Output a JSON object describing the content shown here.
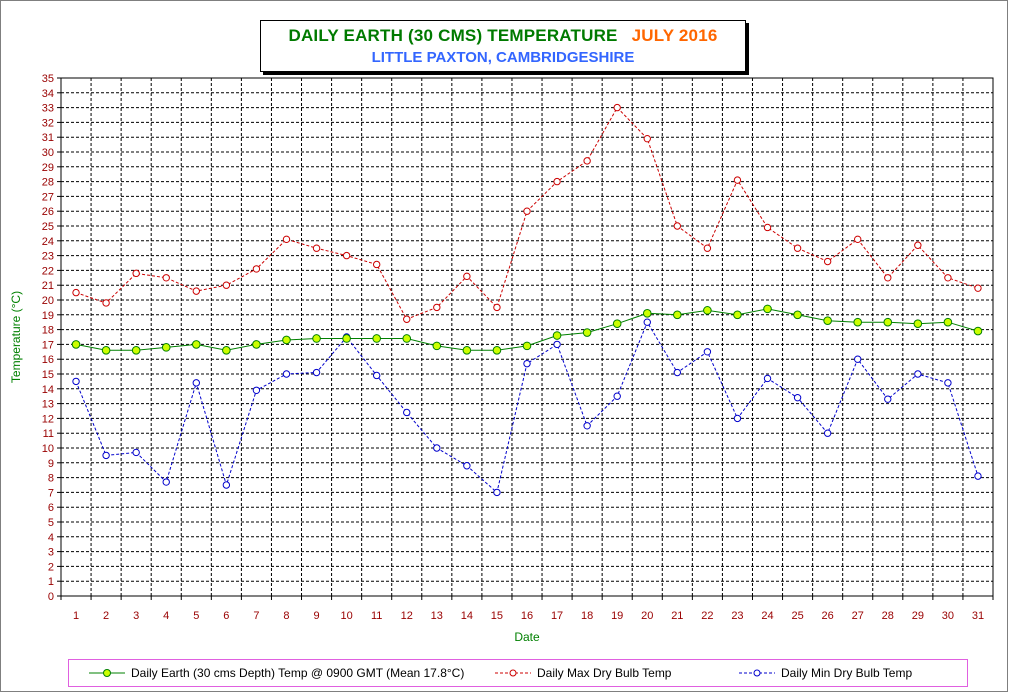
{
  "title": {
    "main": "DAILY EARTH (30 CMS) TEMPERATURE",
    "period": "JULY 2016",
    "subtitle": "LITTLE PAXTON, CAMBRIDGESHIRE"
  },
  "colors": {
    "earth": "#008000",
    "earth_marker": "#ccff00",
    "max": "#cc0000",
    "min": "#0000cc",
    "axis_text": "#990000",
    "axis_title": "#008000"
  },
  "chart_data": {
    "type": "line",
    "xlabel": "Date",
    "ylabel": "Temperature (°C)",
    "ylim": [
      0,
      35
    ],
    "yticks": [
      0,
      1,
      2,
      3,
      4,
      5,
      6,
      7,
      8,
      9,
      10,
      11,
      12,
      13,
      14,
      15,
      16,
      17,
      18,
      19,
      20,
      21,
      22,
      23,
      24,
      25,
      26,
      27,
      28,
      29,
      30,
      31,
      32,
      33,
      34,
      35
    ],
    "x": [
      1,
      2,
      3,
      4,
      5,
      6,
      7,
      8,
      9,
      10,
      11,
      12,
      13,
      14,
      15,
      16,
      17,
      18,
      19,
      20,
      21,
      22,
      23,
      24,
      25,
      26,
      27,
      28,
      29,
      30,
      31
    ],
    "grid": true,
    "legend_position": "bottom",
    "series": [
      {
        "name": "Daily Earth (30 cms Depth) Temp @ 0900 GMT (Mean 17.8°C)",
        "values": [
          17.0,
          16.6,
          16.6,
          16.8,
          17.0,
          16.6,
          17.0,
          17.3,
          17.4,
          17.4,
          17.4,
          17.4,
          16.9,
          16.6,
          16.6,
          16.9,
          17.6,
          17.8,
          18.4,
          19.1,
          19.0,
          19.3,
          19.0,
          19.4,
          19.0,
          18.6,
          18.5,
          18.5,
          18.4,
          18.5,
          17.9
        ]
      },
      {
        "name": "Daily Max Dry Bulb Temp",
        "values": [
          20.5,
          19.8,
          21.8,
          21.5,
          20.6,
          21.0,
          22.1,
          24.1,
          23.5,
          23.0,
          22.4,
          18.7,
          19.5,
          21.6,
          19.5,
          26.0,
          28.0,
          29.4,
          33.0,
          30.9,
          25.0,
          23.5,
          28.1,
          24.9,
          23.5,
          22.6,
          24.1,
          21.5,
          23.7,
          21.5,
          20.8
        ]
      },
      {
        "name": "Daily Min Dry Bulb Temp",
        "values": [
          14.5,
          9.5,
          9.7,
          7.7,
          14.4,
          7.5,
          13.9,
          15.0,
          15.1,
          17.5,
          14.9,
          12.4,
          10.0,
          8.8,
          7.0,
          15.7,
          17.0,
          11.5,
          13.5,
          18.5,
          15.1,
          16.5,
          12.0,
          14.7,
          13.4,
          11.0,
          16.0,
          13.3,
          15.0,
          14.4,
          8.1
        ]
      }
    ]
  }
}
